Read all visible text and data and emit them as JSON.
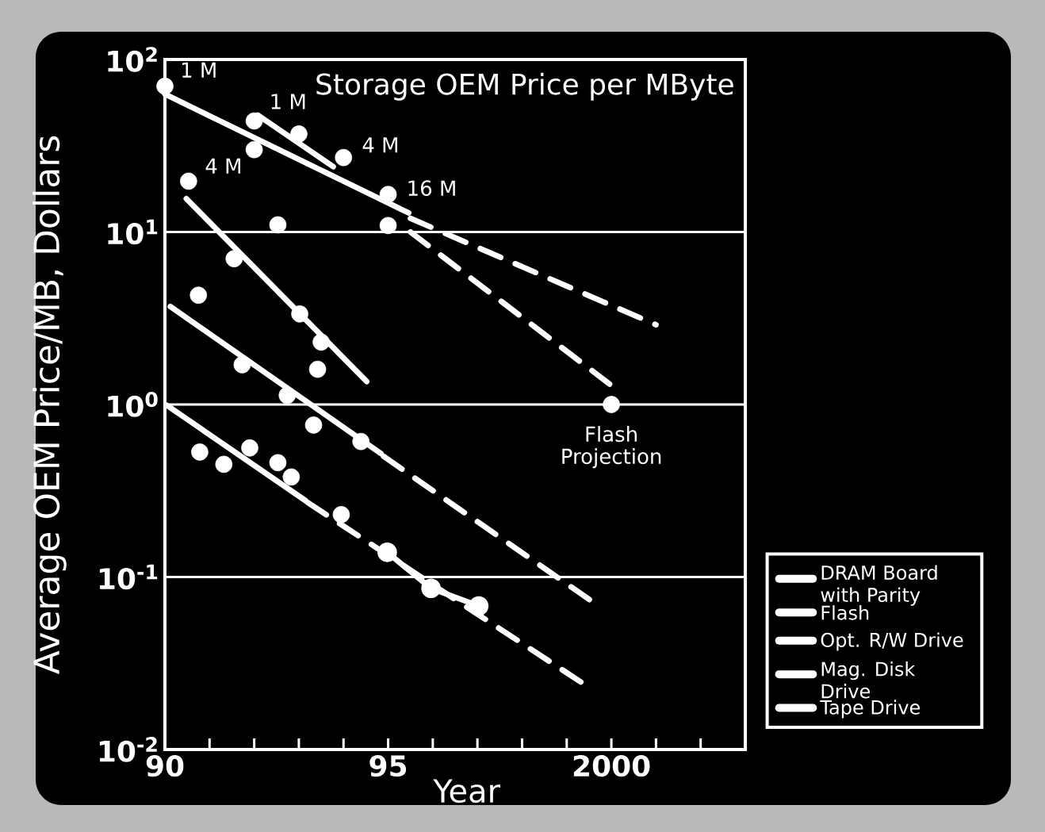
{
  "chart_data": {
    "type": "scatter",
    "title": "Storage OEM Price per MByte",
    "xlabel": "Year",
    "ylabel": "Average OEM Price/MB, Dollars",
    "xlim": [
      1990,
      2003
    ],
    "ylim": [
      0.01,
      100
    ],
    "log": "y",
    "grid": "y",
    "legend": "bottom right",
    "xticks": [
      {
        "value": 1990,
        "label": "90"
      },
      {
        "value": 1991,
        "label": null
      },
      {
        "value": 1992,
        "label": null
      },
      {
        "value": 1993,
        "label": null
      },
      {
        "value": 1994,
        "label": null
      },
      {
        "value": 1995,
        "label": "95"
      },
      {
        "value": 1996,
        "label": null
      },
      {
        "value": 1997,
        "label": null
      },
      {
        "value": 1998,
        "label": null
      },
      {
        "value": 1999,
        "label": null
      },
      2000,
      {
        "value": 2001,
        "label": null
      },
      {
        "value": 2002,
        "label": null
      }
    ],
    "yticks": [
      {
        "value": 0.01,
        "label": "10$^{-2}$"
      },
      {
        "value": 0.1,
        "label": "10$^{-1}$"
      },
      {
        "value": 1,
        "label": "10$^{0}$"
      },
      {
        "value": 10,
        "label": "10$^{1}$"
      },
      {
        "value": 100,
        "label": "10$^{2}$"
      }
    ],
    "series": [
      {
        "name": "DRAM Board with Parity",
        "type": "line",
        "marker": "none",
        "line_style": "solid",
        "color": "#ffffff",
        "x": [
          1990.0,
          1995.46
        ],
        "values": [
          63,
          12.9
        ]
      },
      {
        "name": "Flash",
        "type": "line",
        "marker": "none",
        "line_style": "solid",
        "color": "#ffffff",
        "x": [
          1992.08,
          1993.77
        ],
        "values": [
          47.6,
          23.9
        ]
      },
      {
        "name": "Opt. R/W Drive",
        "type": "line",
        "marker": "none",
        "line_style": "solid",
        "color": "#ffffff",
        "x": [
          1990.48,
          1994.52
        ],
        "values": [
          15.6,
          1.36
        ]
      },
      {
        "name": "Mag. Disk Drive",
        "type": "line",
        "marker": "none",
        "line_style": "solid",
        "color": "#ffffff",
        "x": [
          1990.12,
          1994.84
        ],
        "values": [
          3.7,
          0.52
        ]
      },
      {
        "name": "Tape Drive",
        "type": "line",
        "marker": "none",
        "line_style": "solid",
        "color": "#ffffff",
        "x": [
          1990.04,
          1993.15
        ],
        "values": [
          0.99,
          0.277
        ]
      },
      {
        "type": "line",
        "marker": "none",
        "line_style": "dashed",
        "color": "#ffffff",
        "x": [
          1995.5,
          2001.0
        ],
        "values": [
          12,
          2.9
        ]
      },
      {
        "type": "line",
        "marker": "none",
        "line_style": "dashed",
        "color": "#ffffff",
        "x": [
          1995.5,
          2000.0
        ],
        "values": [
          10,
          1.29
        ]
      },
      {
        "type": "line",
        "marker": "none",
        "line_style": "dashed",
        "color": "#ffffff",
        "x": [
          1994.9,
          1999.64
        ],
        "values": [
          0.5,
          0.07
        ]
      },
      {
        "type": "line",
        "marker": "none",
        "line_style": "dashed",
        "color": "#ffffff",
        "x": [
          1993.2,
          1999.38
        ],
        "values": [
          0.27,
          0.024
        ]
      },
      {
        "type": "line",
        "marker": "circle",
        "line_style": "solid",
        "color": "#ffffff",
        "x": [
          1994.98,
          1995.96,
          1997.03
        ],
        "values": [
          0.139,
          0.086,
          0.068
        ]
      },
      {
        "marker": "circle",
        "color": "#ffffff",
        "x": [
          1990.0,
          1992.0,
          1992.0,
          1993.0,
          1994.0,
          1995.0,
          1995.0
        ],
        "values": [
          70,
          44,
          30,
          37,
          27,
          16.5,
          10.9
        ]
      },
      {
        "marker": "circle",
        "color": "#ffffff",
        "x": [
          1990.53,
          1991.55,
          1992.53,
          1993.02,
          1993.5
        ],
        "values": [
          19.7,
          7.0,
          11,
          3.35,
          2.3
        ]
      },
      {
        "marker": "circle",
        "color": "#ffffff",
        "x": [
          1990.75,
          1991.73,
          1992.74,
          1993.42,
          1993.33,
          1994.39
        ],
        "values": [
          4.3,
          1.7,
          1.13,
          1.6,
          0.76,
          0.61
        ]
      },
      {
        "marker": "circle",
        "color": "#ffffff",
        "x": [
          1990.78,
          1991.32,
          1991.9,
          1992.53,
          1992.83,
          1993.95
        ],
        "values": [
          0.53,
          0.45,
          0.56,
          0.46,
          0.38,
          0.23
        ]
      },
      {
        "marker": "circle",
        "color": "#ffffff",
        "x": [
          2000.0
        ],
        "values": [
          1.0
        ]
      }
    ],
    "annotations": [
      {
        "text": "1 M",
        "x": 1990.0,
        "y": 70
      },
      {
        "text": "1 M",
        "x": 1992.0,
        "y": 44
      },
      {
        "text": "4 M",
        "x": 1992.0,
        "y": 30
      },
      {
        "text": "4 M",
        "x": 1994.0,
        "y": 27
      },
      {
        "text": "16 M",
        "x": 1995.0,
        "y": 16.5
      },
      {
        "text": "Flash Projection",
        "x": 2000.0,
        "y": 1.0
      }
    ]
  }
}
